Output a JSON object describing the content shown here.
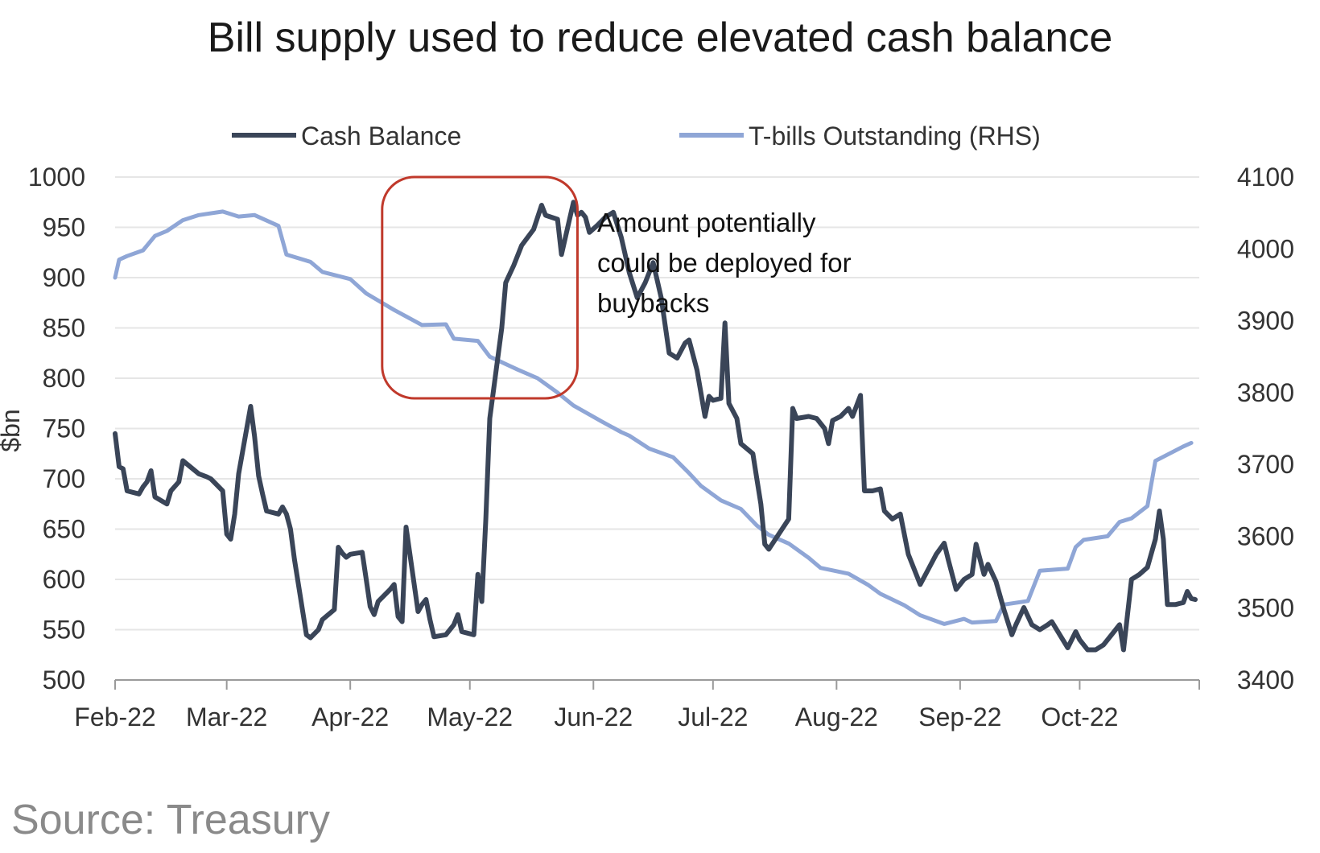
{
  "chart_data": {
    "type": "line",
    "title": "Bill supply used to reduce elevated cash balance",
    "ylabel": "$bn",
    "y2label": "",
    "ylim": [
      500,
      1000
    ],
    "yticks": [
      500,
      550,
      600,
      650,
      700,
      750,
      800,
      850,
      900,
      950,
      1000
    ],
    "y2lim": [
      3400,
      4100
    ],
    "y2ticks": [
      3400,
      3500,
      3600,
      3700,
      3800,
      3900,
      4000,
      4100
    ],
    "x_range": [
      "2022-02-01",
      "2022-10-31"
    ],
    "xticks": [
      {
        "date": "2022-02-01",
        "label": "Feb-22"
      },
      {
        "date": "2022-03-01",
        "label": "Mar-22"
      },
      {
        "date": "2022-04-01",
        "label": "Apr-22"
      },
      {
        "date": "2022-05-01",
        "label": "May-22"
      },
      {
        "date": "2022-06-01",
        "label": "Jun-22"
      },
      {
        "date": "2022-07-01",
        "label": "Jul-22"
      },
      {
        "date": "2022-08-01",
        "label": "Aug-22"
      },
      {
        "date": "2022-09-01",
        "label": "Sep-22"
      },
      {
        "date": "2022-10-01",
        "label": "Oct-22"
      }
    ],
    "legend_position": "top",
    "grid": "horizontal",
    "series": [
      {
        "name": "Cash Balance",
        "axis": "left",
        "color": "#3a4558",
        "points": [
          [
            "2022-02-01",
            745
          ],
          [
            "2022-02-02",
            712
          ],
          [
            "2022-02-03",
            710
          ],
          [
            "2022-02-04",
            688
          ],
          [
            "2022-02-07",
            685
          ],
          [
            "2022-02-08",
            692
          ],
          [
            "2022-02-09",
            697
          ],
          [
            "2022-02-10",
            708
          ],
          [
            "2022-02-11",
            682
          ],
          [
            "2022-02-14",
            675
          ],
          [
            "2022-02-15",
            688
          ],
          [
            "2022-02-17",
            697
          ],
          [
            "2022-02-18",
            718
          ],
          [
            "2022-02-22",
            705
          ],
          [
            "2022-02-24",
            702
          ],
          [
            "2022-02-25",
            700
          ],
          [
            "2022-02-28",
            688
          ],
          [
            "2022-03-01",
            645
          ],
          [
            "2022-03-02",
            640
          ],
          [
            "2022-03-03",
            665
          ],
          [
            "2022-03-04",
            705
          ],
          [
            "2022-03-07",
            772
          ],
          [
            "2022-03-08",
            742
          ],
          [
            "2022-03-09",
            703
          ],
          [
            "2022-03-10",
            685
          ],
          [
            "2022-03-11",
            668
          ],
          [
            "2022-03-14",
            665
          ],
          [
            "2022-03-15",
            672
          ],
          [
            "2022-03-16",
            665
          ],
          [
            "2022-03-17",
            650
          ],
          [
            "2022-03-18",
            620
          ],
          [
            "2022-03-21",
            545
          ],
          [
            "2022-03-22",
            542
          ],
          [
            "2022-03-24",
            550
          ],
          [
            "2022-03-25",
            560
          ],
          [
            "2022-03-28",
            570
          ],
          [
            "2022-03-29",
            632
          ],
          [
            "2022-03-30",
            626
          ],
          [
            "2022-03-31",
            622
          ],
          [
            "2022-04-01",
            625
          ],
          [
            "2022-04-04",
            627
          ],
          [
            "2022-04-05",
            600
          ],
          [
            "2022-04-06",
            573
          ],
          [
            "2022-04-07",
            565
          ],
          [
            "2022-04-08",
            578
          ],
          [
            "2022-04-11",
            590
          ],
          [
            "2022-04-12",
            595
          ],
          [
            "2022-04-13",
            563
          ],
          [
            "2022-04-14",
            558
          ],
          [
            "2022-04-15",
            652
          ],
          [
            "2022-04-18",
            568
          ],
          [
            "2022-04-19",
            575
          ],
          [
            "2022-04-20",
            580
          ],
          [
            "2022-04-21",
            560
          ],
          [
            "2022-04-22",
            543
          ],
          [
            "2022-04-25",
            545
          ],
          [
            "2022-04-26",
            550
          ],
          [
            "2022-04-27",
            555
          ],
          [
            "2022-04-28",
            565
          ],
          [
            "2022-04-29",
            548
          ],
          [
            "2022-05-02",
            545
          ],
          [
            "2022-05-03",
            605
          ],
          [
            "2022-05-04",
            578
          ],
          [
            "2022-05-05",
            660
          ],
          [
            "2022-05-06",
            760
          ],
          [
            "2022-05-09",
            850
          ],
          [
            "2022-05-10",
            895
          ],
          [
            "2022-05-12",
            912
          ],
          [
            "2022-05-14",
            932
          ],
          [
            "2022-05-17",
            948
          ],
          [
            "2022-05-19",
            972
          ],
          [
            "2022-05-20",
            962
          ],
          [
            "2022-05-23",
            958
          ],
          [
            "2022-05-24",
            923
          ],
          [
            "2022-05-26",
            958
          ],
          [
            "2022-05-27",
            975
          ],
          [
            "2022-05-28",
            962
          ],
          [
            "2022-05-29",
            965
          ],
          [
            "2022-05-30",
            960
          ],
          [
            "2022-05-31",
            945
          ],
          [
            "2022-06-02",
            952
          ],
          [
            "2022-06-04",
            960
          ],
          [
            "2022-06-06",
            965
          ],
          [
            "2022-06-08",
            940
          ],
          [
            "2022-06-10",
            905
          ],
          [
            "2022-06-12",
            880
          ],
          [
            "2022-06-14",
            895
          ],
          [
            "2022-06-16",
            915
          ],
          [
            "2022-06-18",
            880
          ],
          [
            "2022-06-20",
            825
          ],
          [
            "2022-06-22",
            820
          ],
          [
            "2022-06-24",
            835
          ],
          [
            "2022-06-25",
            838
          ],
          [
            "2022-06-27",
            808
          ],
          [
            "2022-06-29",
            762
          ],
          [
            "2022-06-30",
            782
          ],
          [
            "2022-07-01",
            778
          ],
          [
            "2022-07-03",
            780
          ],
          [
            "2022-07-04",
            855
          ],
          [
            "2022-07-05",
            775
          ],
          [
            "2022-07-07",
            760
          ],
          [
            "2022-07-08",
            735
          ],
          [
            "2022-07-11",
            725
          ],
          [
            "2022-07-12",
            700
          ],
          [
            "2022-07-13",
            675
          ],
          [
            "2022-07-14",
            635
          ],
          [
            "2022-07-15",
            630
          ],
          [
            "2022-07-18",
            648
          ],
          [
            "2022-07-20",
            660
          ],
          [
            "2022-07-21",
            770
          ],
          [
            "2022-07-22",
            760
          ],
          [
            "2022-07-25",
            762
          ],
          [
            "2022-07-27",
            760
          ],
          [
            "2022-07-29",
            750
          ],
          [
            "2022-07-30",
            735
          ],
          [
            "2022-07-31",
            758
          ],
          [
            "2022-08-02",
            762
          ],
          [
            "2022-08-04",
            770
          ],
          [
            "2022-08-05",
            762
          ],
          [
            "2022-08-07",
            783
          ],
          [
            "2022-08-08",
            688
          ],
          [
            "2022-08-10",
            688
          ],
          [
            "2022-08-12",
            690
          ],
          [
            "2022-08-13",
            668
          ],
          [
            "2022-08-15",
            660
          ],
          [
            "2022-08-17",
            665
          ],
          [
            "2022-08-19",
            625
          ],
          [
            "2022-08-22",
            595
          ],
          [
            "2022-08-24",
            610
          ],
          [
            "2022-08-26",
            625
          ],
          [
            "2022-08-28",
            636
          ],
          [
            "2022-08-29",
            620
          ],
          [
            "2022-08-31",
            590
          ],
          [
            "2022-09-02",
            600
          ],
          [
            "2022-09-04",
            605
          ],
          [
            "2022-09-05",
            635
          ],
          [
            "2022-09-07",
            605
          ],
          [
            "2022-09-08",
            615
          ],
          [
            "2022-09-10",
            598
          ],
          [
            "2022-09-12",
            570
          ],
          [
            "2022-09-14",
            545
          ],
          [
            "2022-09-15",
            555
          ],
          [
            "2022-09-17",
            572
          ],
          [
            "2022-09-19",
            555
          ],
          [
            "2022-09-21",
            550
          ],
          [
            "2022-09-23",
            555
          ],
          [
            "2022-09-24",
            558
          ],
          [
            "2022-09-26",
            545
          ],
          [
            "2022-09-28",
            532
          ],
          [
            "2022-09-30",
            548
          ],
          [
            "2022-10-01",
            540
          ],
          [
            "2022-10-03",
            530
          ],
          [
            "2022-10-05",
            530
          ],
          [
            "2022-10-07",
            535
          ],
          [
            "2022-10-09",
            545
          ],
          [
            "2022-10-11",
            555
          ],
          [
            "2022-10-12",
            530
          ],
          [
            "2022-10-14",
            600
          ],
          [
            "2022-10-16",
            605
          ],
          [
            "2022-10-18",
            612
          ],
          [
            "2022-10-20",
            640
          ],
          [
            "2022-10-21",
            668
          ],
          [
            "2022-10-22",
            640
          ],
          [
            "2022-10-23",
            575
          ],
          [
            "2022-10-25",
            575
          ],
          [
            "2022-10-26",
            576
          ],
          [
            "2022-10-27",
            577
          ],
          [
            "2022-10-28",
            588
          ],
          [
            "2022-10-29",
            581
          ],
          [
            "2022-10-30",
            580
          ]
        ]
      },
      {
        "name": "T-bills Outstanding (RHS)",
        "axis": "right",
        "color": "#8fa6d6",
        "points": [
          [
            "2022-02-01",
            3960
          ],
          [
            "2022-02-02",
            3985
          ],
          [
            "2022-02-04",
            3990
          ],
          [
            "2022-02-08",
            3998
          ],
          [
            "2022-02-11",
            4018
          ],
          [
            "2022-02-14",
            4025
          ],
          [
            "2022-02-18",
            4040
          ],
          [
            "2022-02-22",
            4047
          ],
          [
            "2022-02-28",
            4052
          ],
          [
            "2022-03-04",
            4045
          ],
          [
            "2022-03-08",
            4047
          ],
          [
            "2022-03-14",
            4032
          ],
          [
            "2022-03-16",
            3992
          ],
          [
            "2022-03-22",
            3982
          ],
          [
            "2022-03-25",
            3968
          ],
          [
            "2022-04-01",
            3958
          ],
          [
            "2022-04-05",
            3938
          ],
          [
            "2022-04-12",
            3915
          ],
          [
            "2022-04-19",
            3894
          ],
          [
            "2022-04-25",
            3895
          ],
          [
            "2022-04-27",
            3875
          ],
          [
            "2022-05-03",
            3872
          ],
          [
            "2022-05-06",
            3850
          ],
          [
            "2022-05-13",
            3832
          ],
          [
            "2022-05-18",
            3820
          ],
          [
            "2022-05-23",
            3800
          ],
          [
            "2022-05-27",
            3782
          ],
          [
            "2022-06-03",
            3760
          ],
          [
            "2022-06-08",
            3745
          ],
          [
            "2022-06-10",
            3740
          ],
          [
            "2022-06-15",
            3722
          ],
          [
            "2022-06-21",
            3710
          ],
          [
            "2022-06-25",
            3688
          ],
          [
            "2022-06-28",
            3670
          ],
          [
            "2022-07-03",
            3650
          ],
          [
            "2022-07-08",
            3638
          ],
          [
            "2022-07-12",
            3615
          ],
          [
            "2022-07-15",
            3602
          ],
          [
            "2022-07-20",
            3590
          ],
          [
            "2022-07-25",
            3570
          ],
          [
            "2022-07-28",
            3556
          ],
          [
            "2022-08-04",
            3548
          ],
          [
            "2022-08-09",
            3532
          ],
          [
            "2022-08-12",
            3520
          ],
          [
            "2022-08-18",
            3504
          ],
          [
            "2022-08-22",
            3490
          ],
          [
            "2022-08-28",
            3478
          ],
          [
            "2022-09-02",
            3485
          ],
          [
            "2022-09-04",
            3480
          ],
          [
            "2022-09-10",
            3482
          ],
          [
            "2022-09-12",
            3505
          ],
          [
            "2022-09-18",
            3510
          ],
          [
            "2022-09-21",
            3552
          ],
          [
            "2022-09-28",
            3555
          ],
          [
            "2022-09-30",
            3585
          ],
          [
            "2022-10-02",
            3595
          ],
          [
            "2022-10-08",
            3600
          ],
          [
            "2022-10-11",
            3620
          ],
          [
            "2022-10-14",
            3625
          ],
          [
            "2022-10-18",
            3642
          ],
          [
            "2022-10-20",
            3705
          ],
          [
            "2022-10-27",
            3725
          ],
          [
            "2022-10-29",
            3730
          ]
        ]
      }
    ],
    "annotations": [
      {
        "type": "box",
        "x0": "2022-04-09",
        "x1": "2022-05-28",
        "y0": 780,
        "y1": 1000,
        "color": "#c0392b"
      },
      {
        "type": "text",
        "lines": [
          "Amount potentially",
          "could be deployed for",
          "buybacks"
        ]
      }
    ]
  },
  "source": "Source: Treasury"
}
